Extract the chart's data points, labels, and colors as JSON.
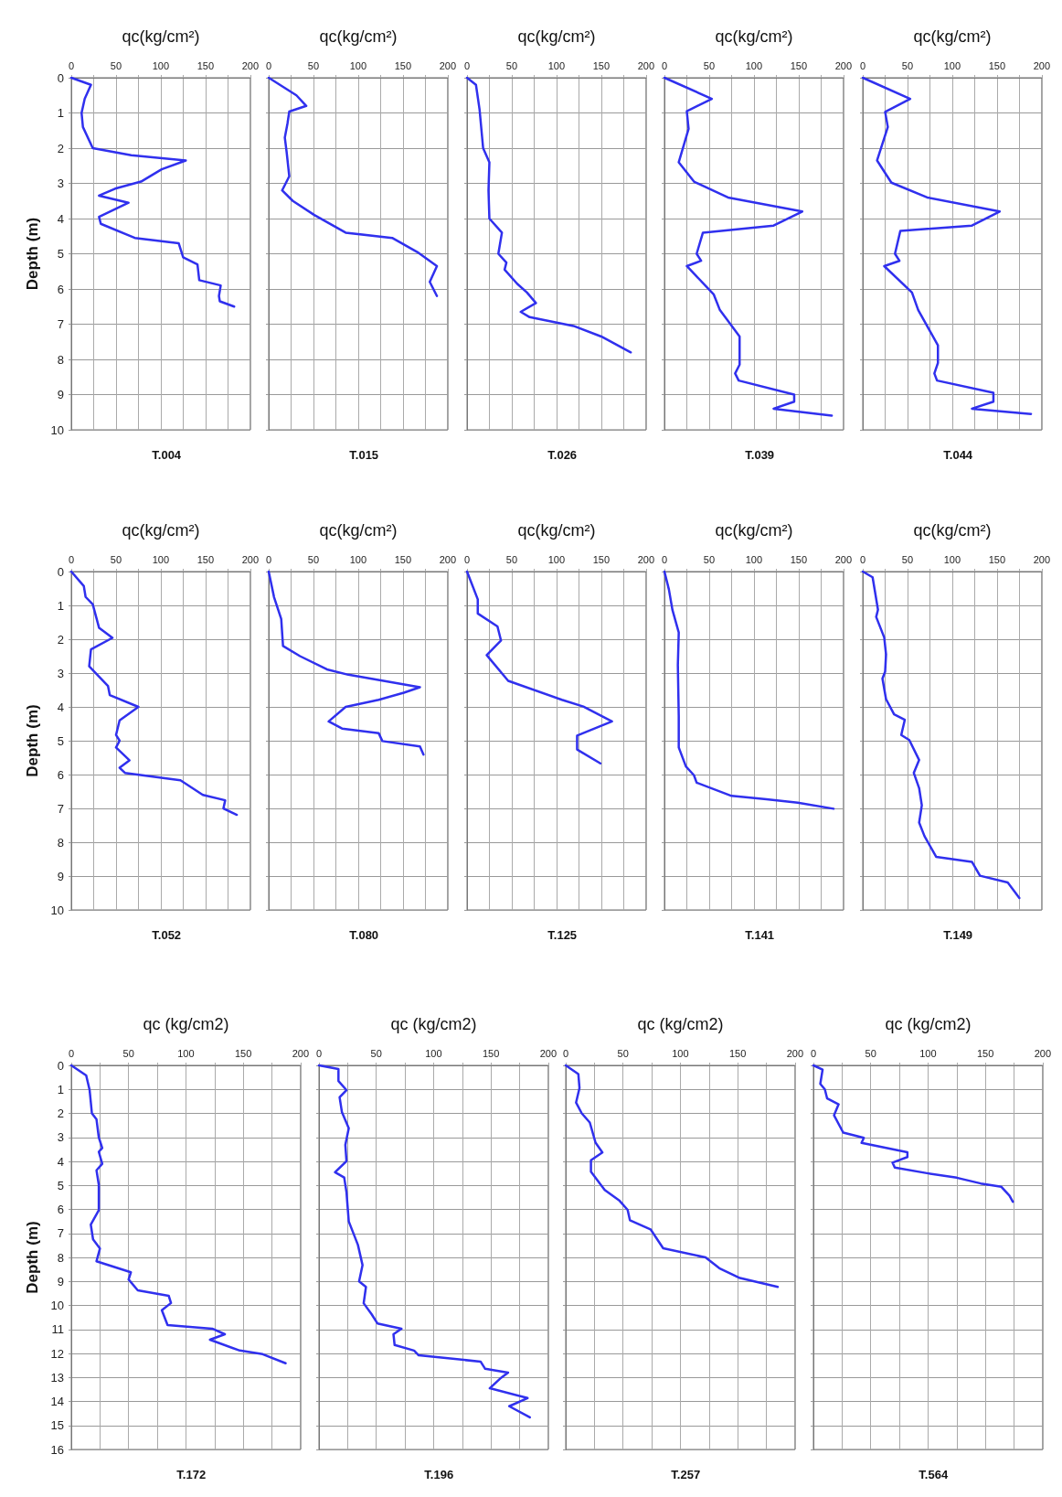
{
  "chart_data": [
    {
      "type": "line",
      "title": "T.004",
      "xlabel": "qc(kg/cm²)",
      "ylabel": "Depth (m)",
      "xlim": [
        0,
        200
      ],
      "ylim": [
        10,
        0
      ],
      "xticks": [
        0,
        {
          "value": 25,
          "label": null
        },
        50,
        {
          "value": 75,
          "label": null
        },
        100,
        {
          "value": 125,
          "label": null
        },
        150,
        {
          "value": 175,
          "label": null
        },
        200
      ],
      "yticks": [
        0,
        1,
        2,
        3,
        4,
        5,
        6,
        7,
        8,
        9,
        10
      ],
      "grid": true,
      "series": [
        {
          "color": "#3030ee",
          "x": [
            0,
            22,
            15,
            11.5,
            13,
            24,
            67,
            128,
            101,
            78,
            49,
            31,
            64,
            31,
            33,
            71,
            120,
            125,
            141,
            143,
            167,
            165,
            166,
            182
          ],
          "values": [
            0,
            0.2,
            0.6,
            1.0,
            1.4,
            2.0,
            2.2,
            2.35,
            2.6,
            2.95,
            3.15,
            3.35,
            3.55,
            3.95,
            4.15,
            4.55,
            4.7,
            5.1,
            5.3,
            5.75,
            5.9,
            6.2,
            6.35,
            6.5
          ]
        }
      ]
    },
    {
      "type": "line",
      "title": "T.015",
      "xlabel": "qc(kg/cm²)",
      "tick_labels": "x",
      "xlim": [
        0,
        200
      ],
      "ylim": [
        10,
        0
      ],
      "xticks": [
        0,
        {
          "value": 25,
          "label": null
        },
        50,
        {
          "value": 75,
          "label": null
        },
        100,
        {
          "value": 125,
          "label": null
        },
        150,
        {
          "value": 175,
          "label": null
        },
        200
      ],
      "yticks": [
        0,
        1,
        2,
        3,
        4,
        5,
        6,
        7,
        8,
        9,
        10
      ],
      "grid": true,
      "series": [
        {
          "color": "#3030ee",
          "x": [
            0,
            31,
            42,
            23,
            21,
            18,
            20,
            23,
            15,
            27,
            51,
            86,
            138,
            166,
            188,
            180,
            188
          ],
          "values": [
            0,
            0.5,
            0.8,
            0.96,
            1.3,
            1.7,
            2.1,
            2.8,
            3.2,
            3.5,
            3.9,
            4.4,
            4.55,
            4.95,
            5.35,
            5.8,
            6.2
          ]
        }
      ]
    },
    {
      "type": "line",
      "title": "T.026",
      "xlabel": "qc(kg/cm²)",
      "tick_labels": "x",
      "xlim": [
        0,
        200
      ],
      "ylim": [
        10,
        0
      ],
      "xticks": [
        0,
        {
          "value": 25,
          "label": null
        },
        50,
        {
          "value": 75,
          "label": null
        },
        100,
        {
          "value": 125,
          "label": null
        },
        150,
        {
          "value": 175,
          "label": null
        },
        200
      ],
      "yticks": [
        0,
        1,
        2,
        3,
        4,
        5,
        6,
        7,
        8,
        9,
        10
      ],
      "grid": true,
      "series": [
        {
          "color": "#3030ee",
          "x": [
            0,
            10,
            14,
            18,
            25,
            24,
            25,
            39,
            35,
            44,
            42,
            56,
            67,
            77,
            60,
            70,
            119,
            150,
            183
          ],
          "values": [
            0,
            0.2,
            0.9,
            2.0,
            2.4,
            3.2,
            4.0,
            4.4,
            5.0,
            5.25,
            5.45,
            5.85,
            6.1,
            6.4,
            6.65,
            6.8,
            7.05,
            7.35,
            7.8
          ]
        }
      ]
    },
    {
      "type": "line",
      "title": "T.039",
      "xlabel": "qc(kg/cm²)",
      "tick_labels": "x",
      "xlim": [
        0,
        200
      ],
      "ylim": [
        10,
        0
      ],
      "xticks": [
        0,
        {
          "value": 25,
          "label": null
        },
        50,
        {
          "value": 75,
          "label": null
        },
        100,
        {
          "value": 125,
          "label": null
        },
        150,
        {
          "value": 175,
          "label": null
        },
        200
      ],
      "yticks": [
        0,
        1,
        2,
        3,
        4,
        5,
        6,
        7,
        8,
        9,
        10
      ],
      "grid": true,
      "series": [
        {
          "color": "#3030ee",
          "x": [
            0,
            53,
            25,
            27,
            16,
            33,
            71,
            154,
            122,
            43,
            36,
            41,
            25,
            55,
            62,
            84,
            84,
            79,
            83,
            145,
            145,
            122,
            187
          ],
          "values": [
            0,
            0.6,
            0.95,
            1.45,
            2.4,
            2.95,
            3.4,
            3.8,
            4.2,
            4.4,
            5.0,
            5.2,
            5.35,
            6.15,
            6.6,
            7.35,
            8.15,
            8.4,
            8.6,
            9.0,
            9.2,
            9.4,
            9.6
          ]
        }
      ]
    },
    {
      "type": "line",
      "title": "T.044",
      "xlabel": "qc(kg/cm²)",
      "tick_labels": "x",
      "xlim": [
        0,
        200
      ],
      "ylim": [
        10,
        0
      ],
      "xticks": [
        0,
        {
          "value": 25,
          "label": null
        },
        50,
        {
          "value": 75,
          "label": null
        },
        100,
        {
          "value": 125,
          "label": null
        },
        150,
        {
          "value": 175,
          "label": null
        },
        200
      ],
      "yticks": [
        0,
        1,
        2,
        3,
        4,
        5,
        6,
        7,
        8,
        9,
        10
      ],
      "grid": true,
      "series": [
        {
          "color": "#3030ee",
          "x": [
            0,
            53,
            25,
            28,
            16,
            32,
            72,
            153,
            122,
            42,
            36,
            41,
            24,
            55,
            62,
            84,
            84,
            80,
            83,
            146,
            146,
            122,
            188
          ],
          "values": [
            0,
            0.6,
            0.97,
            1.4,
            2.35,
            2.98,
            3.4,
            3.8,
            4.2,
            4.35,
            5.0,
            5.2,
            5.35,
            6.1,
            6.6,
            7.6,
            8.1,
            8.4,
            8.6,
            8.95,
            9.2,
            9.4,
            9.55
          ]
        }
      ]
    },
    {
      "type": "line",
      "title": "T.052",
      "xlabel": "qc(kg/cm²)",
      "ylabel": "Depth (m)",
      "xlim": [
        0,
        200
      ],
      "ylim": [
        10,
        0
      ],
      "xticks": [
        0,
        {
          "value": 25,
          "label": null
        },
        50,
        {
          "value": 75,
          "label": null
        },
        100,
        {
          "value": 125,
          "label": null
        },
        150,
        {
          "value": 175,
          "label": null
        },
        200
      ],
      "yticks": [
        0,
        1,
        2,
        3,
        4,
        5,
        6,
        7,
        8,
        9,
        10
      ],
      "grid": true,
      "series": [
        {
          "color": "#3030ee",
          "x": [
            0,
            14,
            16,
            24,
            31,
            46,
            22,
            20,
            41,
            43,
            75,
            54,
            50,
            54,
            50,
            65,
            54,
            60,
            122,
            147,
            172,
            170,
            185
          ],
          "values": [
            0,
            0.43,
            0.75,
            0.97,
            1.66,
            1.96,
            2.3,
            2.8,
            3.38,
            3.65,
            4.0,
            4.4,
            4.83,
            5.0,
            5.2,
            5.58,
            5.8,
            5.95,
            6.17,
            6.6,
            6.76,
            7.0,
            7.19
          ]
        }
      ]
    },
    {
      "type": "line",
      "title": "T.080",
      "xlabel": "qc(kg/cm²)",
      "tick_labels": "x",
      "xlim": [
        0,
        200
      ],
      "ylim": [
        10,
        0
      ],
      "xticks": [
        0,
        {
          "value": 25,
          "label": null
        },
        50,
        {
          "value": 75,
          "label": null
        },
        100,
        {
          "value": 125,
          "label": null
        },
        150,
        {
          "value": 175,
          "label": null
        },
        200
      ],
      "yticks": [
        0,
        1,
        2,
        3,
        4,
        5,
        6,
        7,
        8,
        9,
        10
      ],
      "grid": true,
      "series": [
        {
          "color": "#3030ee",
          "x": [
            0,
            6,
            14,
            16,
            35,
            65,
            89,
            169,
            151,
            123,
            86,
            67,
            82,
            123,
            127,
            169,
            173
          ],
          "values": [
            0,
            0.76,
            1.4,
            2.2,
            2.5,
            2.89,
            3.05,
            3.42,
            3.58,
            3.79,
            4.0,
            4.43,
            4.64,
            4.78,
            5.01,
            5.17,
            5.41
          ]
        }
      ]
    },
    {
      "type": "line",
      "title": "T.125",
      "xlabel": "qc(kg/cm²)",
      "tick_labels": "x",
      "xlim": [
        0,
        200
      ],
      "ylim": [
        10,
        0
      ],
      "xticks": [
        0,
        {
          "value": 25,
          "label": null
        },
        50,
        {
          "value": 75,
          "label": null
        },
        100,
        {
          "value": 125,
          "label": null
        },
        150,
        {
          "value": 175,
          "label": null
        },
        200
      ],
      "yticks": [
        0,
        1,
        2,
        3,
        4,
        5,
        6,
        7,
        8,
        9,
        10
      ],
      "grid": true,
      "series": [
        {
          "color": "#3030ee",
          "x": [
            0,
            12,
            12,
            34,
            38,
            22,
            46,
            106,
            130,
            162,
            123,
            123,
            149
          ],
          "values": [
            0,
            0.82,
            1.24,
            1.62,
            2.04,
            2.47,
            3.23,
            3.79,
            3.99,
            4.43,
            4.85,
            5.26,
            5.67
          ]
        }
      ]
    },
    {
      "type": "line",
      "title": "T.141",
      "xlabel": "qc(kg/cm²)",
      "tick_labels": "x",
      "xlim": [
        0,
        200
      ],
      "ylim": [
        10,
        0
      ],
      "xticks": [
        0,
        {
          "value": 25,
          "label": null
        },
        50,
        {
          "value": 75,
          "label": null
        },
        100,
        {
          "value": 125,
          "label": null
        },
        150,
        {
          "value": 175,
          "label": null
        },
        200
      ],
      "yticks": [
        0,
        1,
        2,
        3,
        4,
        5,
        6,
        7,
        8,
        9,
        10
      ],
      "grid": true,
      "series": [
        {
          "color": "#3030ee",
          "x": [
            0,
            5,
            9,
            16,
            15,
            16,
            16,
            24,
            33,
            36,
            75,
            114,
            149,
            189
          ],
          "values": [
            0,
            0.53,
            1.14,
            1.8,
            2.76,
            4.29,
            5.2,
            5.76,
            6.02,
            6.24,
            6.63,
            6.73,
            6.83,
            7.01
          ]
        }
      ]
    },
    {
      "type": "line",
      "title": "T.149",
      "xlabel": "qc(kg/cm²)",
      "tick_labels": "x",
      "xlim": [
        0,
        200
      ],
      "ylim": [
        10,
        0
      ],
      "xticks": [
        0,
        {
          "value": 25,
          "label": null
        },
        50,
        {
          "value": 75,
          "label": null
        },
        100,
        {
          "value": 125,
          "label": null
        },
        150,
        {
          "value": 175,
          "label": null
        },
        200
      ],
      "yticks": [
        0,
        1,
        2,
        3,
        4,
        5,
        6,
        7,
        8,
        9,
        10
      ],
      "grid": true,
      "series": [
        {
          "color": "#3030ee",
          "x": [
            0,
            11,
            17,
            15,
            24,
            26,
            25,
            22,
            26,
            35,
            47,
            43,
            52,
            63,
            57,
            63,
            66,
            63,
            69,
            82,
            122,
            131,
            162,
            175
          ],
          "values": [
            0,
            0.17,
            1.13,
            1.34,
            1.95,
            2.45,
            2.96,
            3.16,
            3.77,
            4.22,
            4.38,
            4.83,
            4.98,
            5.57,
            5.95,
            6.4,
            6.91,
            7.42,
            7.82,
            8.43,
            8.58,
            8.99,
            9.19,
            9.65
          ]
        }
      ]
    },
    {
      "type": "line",
      "title": "T.172",
      "xlabel": "qc (kg/cm2)",
      "ylabel": "Depth (m)",
      "xlim": [
        0,
        200
      ],
      "ylim": [
        16,
        0
      ],
      "xticks": [
        0,
        {
          "value": 25,
          "label": null
        },
        50,
        {
          "value": 75,
          "label": null
        },
        100,
        {
          "value": 125,
          "label": null
        },
        150,
        {
          "value": 175,
          "label": null
        },
        200
      ],
      "yticks": [
        0,
        1,
        2,
        3,
        4,
        5,
        6,
        7,
        8,
        9,
        10,
        11,
        12,
        13,
        14,
        15,
        16
      ],
      "grid": true,
      "series": [
        {
          "color": "#3030ee",
          "x": [
            0,
            13,
            16,
            18,
            22,
            24,
            27,
            24,
            27,
            22,
            24,
            24,
            17,
            19,
            25,
            22,
            52,
            50,
            58,
            85,
            87,
            79,
            84,
            123,
            134,
            121,
            147,
            167,
            187
          ],
          "values": [
            0,
            0.42,
            1.03,
            2.0,
            2.25,
            3.0,
            3.44,
            3.6,
            4.1,
            4.37,
            4.97,
            6.03,
            6.63,
            7.25,
            7.63,
            8.16,
            8.62,
            8.92,
            9.37,
            9.6,
            9.9,
            10.2,
            10.82,
            10.97,
            11.2,
            11.43,
            11.88,
            12.03,
            12.41
          ]
        }
      ]
    },
    {
      "type": "line",
      "title": "T.196",
      "xlabel": "qc (kg/cm2)",
      "tick_labels": "x",
      "xlim": [
        0,
        200
      ],
      "ylim": [
        16,
        0
      ],
      "xticks": [
        0,
        {
          "value": 25,
          "label": null
        },
        50,
        {
          "value": 75,
          "label": null
        },
        100,
        {
          "value": 125,
          "label": null
        },
        150,
        {
          "value": 175,
          "label": null
        },
        200
      ],
      "yticks": [
        0,
        1,
        2,
        3,
        4,
        5,
        6,
        7,
        8,
        9,
        10,
        11,
        12,
        13,
        14,
        15,
        16
      ],
      "grid": true,
      "series": [
        {
          "color": "#3030ee",
          "x": [
            0,
            17,
            17,
            24,
            18,
            20,
            26,
            23,
            24,
            14,
            22,
            24,
            26,
            34,
            38,
            35,
            41,
            39,
            46,
            51,
            72,
            65,
            66,
            83,
            87,
            141,
            145,
            165,
            158,
            149,
            182,
            166,
            184
          ],
          "values": [
            0,
            0.15,
            0.65,
            1.03,
            1.33,
            1.94,
            2.62,
            3.31,
            3.99,
            4.45,
            4.67,
            5.28,
            6.5,
            7.48,
            8.32,
            9.0,
            9.23,
            9.91,
            10.37,
            10.75,
            10.97,
            11.2,
            11.65,
            11.88,
            12.08,
            12.34,
            12.64,
            12.8,
            13.05,
            13.45,
            13.86,
            14.2,
            14.66
          ]
        }
      ]
    },
    {
      "type": "line",
      "title": "T.257",
      "xlabel": "qc (kg/cm2)",
      "tick_labels": "x",
      "xlim": [
        0,
        200
      ],
      "ylim": [
        16,
        0
      ],
      "xticks": [
        0,
        {
          "value": 25,
          "label": null
        },
        50,
        {
          "value": 75,
          "label": null
        },
        100,
        {
          "value": 125,
          "label": null
        },
        150,
        {
          "value": 175,
          "label": null
        },
        200
      ],
      "yticks": [
        0,
        1,
        2,
        3,
        4,
        5,
        6,
        7,
        8,
        9,
        10,
        11,
        12,
        13,
        14,
        15,
        16
      ],
      "grid": true,
      "series": [
        {
          "color": "#3030ee",
          "x": [
            0,
            11,
            12,
            9,
            14,
            21,
            26,
            32,
            22,
            22,
            34,
            47,
            54,
            56,
            74,
            85,
            122,
            134,
            152,
            185
          ],
          "values": [
            0,
            0.36,
            0.94,
            1.55,
            2.0,
            2.38,
            3.22,
            3.63,
            3.95,
            4.43,
            5.19,
            5.64,
            6.02,
            6.45,
            6.83,
            7.62,
            8.0,
            8.45,
            8.86,
            9.23
          ]
        }
      ]
    },
    {
      "type": "line",
      "title": "T.564",
      "xlabel": "qc (kg/cm2)",
      "tick_labels": "x",
      "xlim": [
        0,
        200
      ],
      "ylim": [
        16,
        0
      ],
      "xticks": [
        0,
        {
          "value": 25,
          "label": null
        },
        50,
        {
          "value": 75,
          "label": null
        },
        100,
        {
          "value": 125,
          "label": null
        },
        150,
        {
          "value": 175,
          "label": null
        },
        200
      ],
      "yticks": [
        0,
        1,
        2,
        3,
        4,
        5,
        6,
        7,
        8,
        9,
        10,
        11,
        12,
        13,
        14,
        15,
        16
      ],
      "grid": true,
      "series": [
        {
          "color": "#3030ee",
          "x": [
            0,
            8,
            6,
            10,
            12,
            22,
            18,
            26,
            44,
            42,
            82,
            82,
            69,
            71,
            99,
            125,
            146,
            164,
            171,
            174
          ],
          "values": [
            0,
            0.18,
            0.77,
            1.0,
            1.38,
            1.62,
            2.08,
            2.8,
            3.02,
            3.23,
            3.62,
            3.82,
            4.05,
            4.26,
            4.49,
            4.68,
            4.92,
            5.06,
            5.42,
            5.68
          ]
        }
      ]
    }
  ]
}
